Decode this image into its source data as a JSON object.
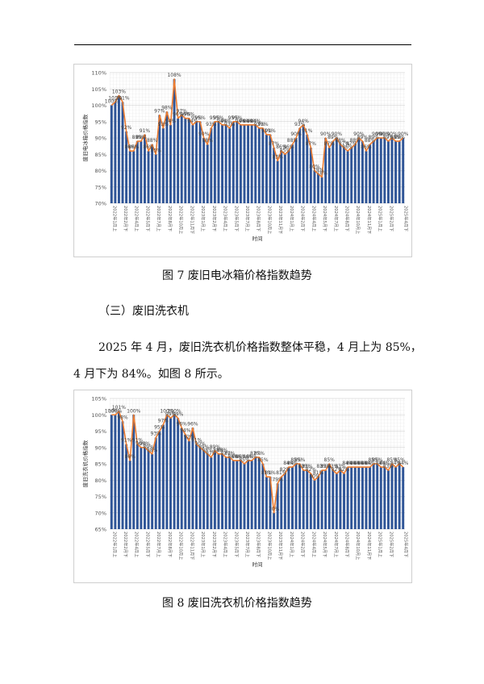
{
  "figure7": {
    "caption": "图 7  废旧电冰箱价格指数趋势",
    "chart_data": {
      "type": "bar",
      "ylabel": "废旧电冰箱价格指数",
      "xlabel": "时间",
      "ylim": [
        70,
        110
      ],
      "yticks": [
        "70%",
        "75%",
        "80%",
        "85%",
        "90%",
        "95%",
        "100%",
        "105%",
        "110%"
      ],
      "grid": true,
      "series_colors": {
        "bar": "#2f5597",
        "line": "#ed7d31"
      },
      "categories": [
        "2022年1月上",
        "2022年1月下",
        "2022年2月上",
        "2022年2月下",
        "2022年3月上",
        "2022年3月下",
        "2022年4月上",
        "2022年4月下",
        "2022年5月上",
        "2022年5月下",
        "2022年6月上",
        "2022年6月下",
        "2022年7月上",
        "2022年7月下",
        "2022年8月上",
        "2022年8月下",
        "2022年9月上",
        "2022年9月下",
        "2022年10月上",
        "2022年10月下",
        "2022年11月上",
        "2022年11月下",
        "2022年12月上",
        "2022年12月下",
        "2023年1月上",
        "2023年1月下",
        "2023年2月上",
        "2023年2月下",
        "2023年3月上",
        "2023年3月下",
        "2023年4月上",
        "2023年4月下",
        "2023年5月上",
        "2023年5月下",
        "2023年6月上",
        "2023年6月下",
        "2023年7月上",
        "2023年7月下",
        "2023年8月上",
        "2023年8月下",
        "2023年9月上",
        "2023年9月下",
        "2023年10月上",
        "2023年10月下",
        "2023年11月上",
        "2023年11月下",
        "2023年12月上",
        "2023年12月下",
        "2024年1月上",
        "2024年1月下",
        "2024年2月上",
        "2024年2月下",
        "2024年3月上",
        "2024年3月下",
        "2024年4月上",
        "2024年4月下",
        "2024年5月上",
        "2024年5月下",
        "2024年6月上",
        "2024年6月下",
        "2024年7月上",
        "2024年7月下",
        "2024年8月上",
        "2024年8月下",
        "2024年9月上",
        "2024年9月下",
        "2024年10月上",
        "2024年10月下",
        "2024年11月上",
        "2024年11月下",
        "2024年12月上",
        "2024年12月下",
        "2025年1月上",
        "2025年1月下",
        "2025年2月上",
        "2025年2月下",
        "2025年3月上",
        "2025年3月下",
        "2025年4月上",
        "2025年4月下"
      ],
      "tick_labels": [
        "2022年1月上",
        "2022年2月下",
        "2022年4月上",
        "2022年5月下",
        "2022年7月上",
        "2022年8月下",
        "2022年10月上",
        "2022年11月下",
        "2023年1月上",
        "2023年2月下",
        "2023年4月上",
        "2023年5月下",
        "2023年7月上",
        "2023年8月下",
        "2023年10月上",
        "2023年11月下",
        "2024年1月上",
        "2024年2月下",
        "2024年4月上",
        "2024年5月下",
        "2024年7月上",
        "2024年8月下",
        "2024年10月上",
        "2024年11月下",
        "2025年1月上",
        "2025年2月下",
        "2025年4月下"
      ],
      "values": [
        100,
        101,
        103,
        101,
        92,
        86,
        86,
        89,
        89,
        91,
        86,
        88,
        85,
        97,
        93,
        98,
        94,
        108,
        96,
        97,
        96,
        96,
        94,
        95,
        95,
        90,
        88,
        93,
        95,
        95,
        94,
        94,
        93,
        95,
        95,
        94,
        94,
        94,
        94,
        94,
        93,
        93,
        91,
        91,
        87,
        83,
        86,
        85,
        86,
        88,
        90,
        93,
        94,
        91,
        87,
        80,
        79,
        78,
        90,
        87,
        89,
        90,
        88,
        87,
        86,
        87,
        88,
        90,
        89,
        86,
        88,
        89,
        90,
        90,
        90,
        89,
        90,
        89,
        89,
        90
      ],
      "labels": [
        "100%",
        "101%",
        "103%",
        "101%",
        "92%",
        "86%",
        "86%",
        "89%",
        "89%",
        "91%",
        "86%",
        "88%",
        "85%",
        "97%",
        "93%",
        "98%",
        "94%",
        "108%",
        "96%",
        "97%",
        "96%",
        "96%",
        "94%",
        "95%",
        "95%",
        "90%",
        "88%",
        "93%",
        "95%",
        "95%",
        "94%",
        "94%",
        "93%",
        "95%",
        "95%",
        "94%",
        "94%",
        "94%",
        "94%",
        "94%",
        "93%",
        "93%",
        "91%",
        "91%",
        "87%",
        "83%",
        "86%",
        "85%",
        "86%",
        "88%",
        "90%",
        "93%",
        "94%",
        "91%",
        "87%",
        "80%",
        "79%",
        "78%",
        "90%",
        "87%",
        "89%",
        "90%",
        "88%",
        "87%",
        "86%",
        "87%",
        "88%",
        "90%",
        "89%",
        "86%",
        "88%",
        "89%",
        "90%",
        "90%",
        "90%",
        "89%",
        "90%",
        "89%",
        "89%",
        "90%"
      ]
    }
  },
  "section": {
    "heading": "（三）废旧洗衣机",
    "paragraph_line1": "2025 年 4 月，废旧洗衣机价格指数整体平稳，4 月上为 85%，",
    "paragraph_line2": "4 月下为 84%。如图 8 所示。"
  },
  "figure8": {
    "caption": "图 8  废旧洗衣机价格指数趋势",
    "chart_data": {
      "type": "bar",
      "ylabel": "废旧洗衣机价格指数",
      "xlabel": "时间",
      "ylim": [
        65,
        105
      ],
      "yticks": [
        "65%",
        "70%",
        "75%",
        "80%",
        "85%",
        "90%",
        "95%",
        "100%",
        "105%"
      ],
      "grid": true,
      "series_colors": {
        "bar": "#2f5597",
        "line": "#ed7d31"
      },
      "categories": [
        "2022年1月上",
        "2022年1月下",
        "2022年2月上",
        "2022年2月下",
        "2022年3月上",
        "2022年3月下",
        "2022年4月上",
        "2022年4月下",
        "2022年5月上",
        "2022年5月下",
        "2022年6月上",
        "2022年6月下",
        "2022年7月上",
        "2022年7月下",
        "2022年8月上",
        "2022年8月下",
        "2022年9月上",
        "2022年9月下",
        "2022年10月上",
        "2022年10月下",
        "2022年11月上",
        "2022年11月下",
        "2022年12月上",
        "2022年12月下",
        "2023年1月上",
        "2023年1月下",
        "2023年2月上",
        "2023年2月下",
        "2023年3月上",
        "2023年3月下",
        "2023年4月上",
        "2023年4月下",
        "2023年5月上",
        "2023年5月下",
        "2023年6月上",
        "2023年6月下",
        "2023年7月上",
        "2023年7月下",
        "2023年8月上",
        "2023年8月下",
        "2023年9月上",
        "2023年9月下",
        "2023年10月上",
        "2023年10月下",
        "2023年11月上",
        "2023年11月下",
        "2023年12月上",
        "2023年12月下",
        "2024年1月上",
        "2024年1月下",
        "2024年2月上",
        "2024年2月下",
        "2024年3月上",
        "2024年3月下",
        "2024年4月上",
        "2024年4月下",
        "2024年5月上",
        "2024年5月下",
        "2024年6月上",
        "2024年6月下",
        "2024年7月上",
        "2024年7月下",
        "2024年8月上",
        "2024年8月下",
        "2024年9月上",
        "2024年9月下",
        "2024年10月上",
        "2024年10月下",
        "2024年11月上",
        "2024年11月下",
        "2024年12月上",
        "2024年12月下",
        "2025年1月上",
        "2025年1月下",
        "2025年2月上",
        "2025年2月下",
        "2025年3月上",
        "2025年3月下",
        "2025年4月上",
        "2025年4月下"
      ],
      "tick_labels": [
        "2022年1月上",
        "2022年2月下",
        "2022年4月上",
        "2022年5月下",
        "2022年7月上",
        "2022年8月下",
        "2022年10月上",
        "2022年11月下",
        "2023年1月上",
        "2023年2月下",
        "2023年4月上",
        "2023年5月下",
        "2023年7月上",
        "2023年8月下",
        "2023年10月上",
        "2023年11月下",
        "2024年1月上",
        "2024年2月下",
        "2024年4月上",
        "2024年5月下",
        "2024年7月上",
        "2024年8月下",
        "2024年10月上",
        "2024年11月下",
        "2025年1月上",
        "2025年2月下",
        "2025年4月下"
      ],
      "values": [
        100,
        100,
        101,
        98,
        91,
        86,
        100,
        91,
        90,
        90,
        89,
        88,
        93,
        95,
        97,
        100,
        99,
        100,
        99,
        96,
        94,
        92,
        96,
        91,
        90,
        89,
        88,
        87,
        89,
        88,
        88,
        87,
        87,
        86,
        86,
        86,
        85,
        86,
        86,
        87,
        87,
        85,
        81,
        81,
        70,
        79,
        81,
        82,
        84,
        84,
        85,
        85,
        83,
        83,
        82,
        80,
        81,
        83,
        83,
        85,
        83,
        82,
        83,
        82,
        84,
        84,
        84,
        84,
        84,
        84,
        84,
        85,
        85,
        84,
        84,
        83,
        85,
        84,
        85,
        84
      ],
      "labels": [
        "100%",
        "100%",
        "101%",
        "98%",
        "91%",
        "86%",
        "100%",
        "91%",
        "90%",
        "90%",
        "89%",
        "88%",
        "93%",
        "95%",
        "97%",
        "100%",
        "99%",
        "100%",
        "99%",
        "96%",
        "94%",
        "92%",
        "96%",
        "91%",
        "90%",
        "89%",
        "88%",
        "87%",
        "89%",
        "88%",
        "88%",
        "87%",
        "87%",
        "86%",
        "86%",
        "86%",
        "85%",
        "86%",
        "86%",
        "87%",
        "87%",
        "85%",
        "81%",
        "81%",
        "70%",
        "79%",
        "81%",
        "82%",
        "84%",
        "84%",
        "85%",
        "85%",
        "83%",
        "83%",
        "82%",
        "80%",
        "81%",
        "83%",
        "83%",
        "85%",
        "83%",
        "82%",
        "83%",
        "82%",
        "84%",
        "84%",
        "84%",
        "84%",
        "84%",
        "84%",
        "84%",
        "85%",
        "85%",
        "84%",
        "84%",
        "83%",
        "85%",
        "84%",
        "85%",
        "84%"
      ]
    }
  }
}
